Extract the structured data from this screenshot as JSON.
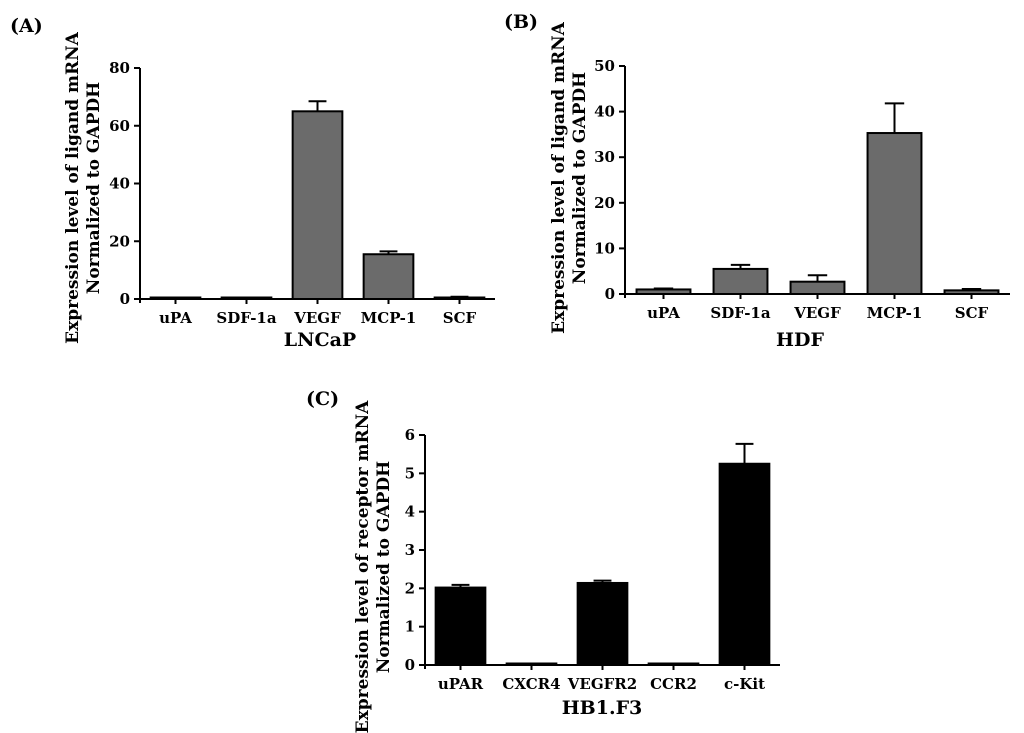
{
  "figure": {
    "colors": {
      "gray_bar": "#6b6b6b",
      "black_bar": "#000000",
      "axis": "#000000"
    }
  },
  "chart_data": [
    {
      "panel": "(A)",
      "type": "bar",
      "categories": [
        "uPA",
        "SDF-1a",
        "VEGF",
        "MCP-1",
        "SCF"
      ],
      "values": [
        0,
        0,
        65,
        15.5,
        0.5
      ],
      "errors": [
        0,
        0,
        3.5,
        1,
        0.3
      ],
      "title": "",
      "xlabel": "LNCaP",
      "ylabel": [
        "Expression level of ligand mRNA",
        "Normalized to GAPDH"
      ],
      "ylim": [
        0,
        80
      ],
      "yticks": [
        "0",
        "20",
        "40",
        "60",
        "80"
      ],
      "color": "#6b6b6b",
      "grid": false
    },
    {
      "panel": "(B)",
      "type": "bar",
      "categories": [
        "uPA",
        "SDF-1a",
        "VEGF",
        "MCP-1",
        "SCF"
      ],
      "values": [
        1,
        5.5,
        2.7,
        35.3,
        0.8
      ],
      "errors": [
        0.2,
        0.9,
        1.4,
        6.5,
        0.3
      ],
      "title": "",
      "xlabel": "HDF",
      "ylabel": [
        "Expression level of ligand mRNA",
        "Normalized to GAPDH"
      ],
      "ylim": [
        0,
        50
      ],
      "yticks": [
        "0",
        "10",
        "20",
        "30",
        "40",
        "50"
      ],
      "color": "#6b6b6b",
      "grid": false
    },
    {
      "panel": "(C)",
      "type": "bar",
      "categories": [
        "uPAR",
        "CXCR4",
        "VEGFR2",
        "CCR2",
        "c-Kit"
      ],
      "values": [
        2.02,
        0.02,
        2.14,
        0.02,
        5.25
      ],
      "errors": [
        0.07,
        0,
        0.06,
        0,
        0.52
      ],
      "title": "",
      "xlabel": "HB1.F3",
      "ylabel": [
        "Expression level of receptor mRNA",
        "Normalized to GAPDH"
      ],
      "ylim": [
        0,
        6
      ],
      "yticks": [
        "0",
        "1",
        "2",
        "3",
        "4",
        "5",
        "6"
      ],
      "color": "#000000",
      "grid": false
    }
  ]
}
